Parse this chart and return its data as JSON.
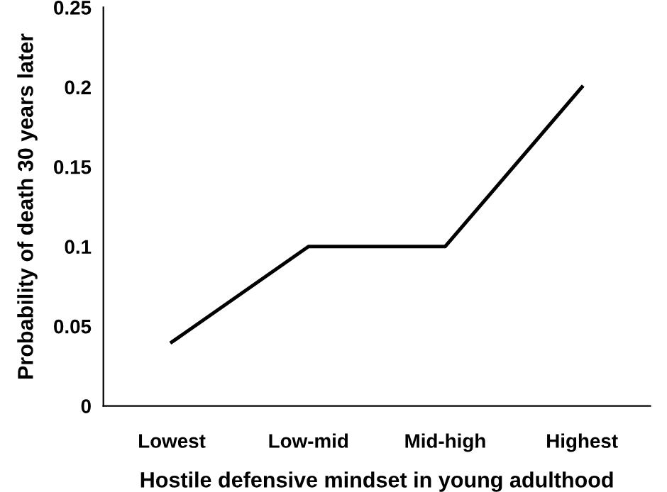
{
  "chart_data": {
    "type": "line",
    "xlabel": "Hostile defensive mindset in young adulthood",
    "ylabel": "Probability of death 30 years later",
    "categories": [
      "Lowest",
      "Low-mid",
      "Mid-high",
      "Highest"
    ],
    "series": [
      {
        "color": "#000000",
        "values": [
          0.04,
          0.1,
          0.1,
          0.2
        ]
      }
    ],
    "ylim": [
      0,
      0.25
    ],
    "yticks": [
      0,
      0.05,
      0.1,
      0.15,
      0.2,
      0.25
    ],
    "grid": false,
    "legend": false,
    "marker": "none",
    "line_style": "solid"
  }
}
